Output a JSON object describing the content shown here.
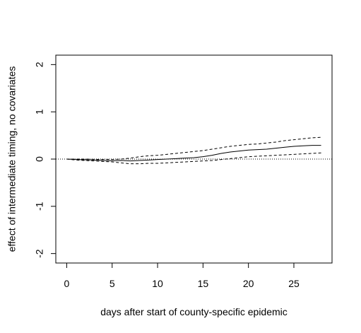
{
  "chart_data": {
    "type": "line",
    "title": "",
    "xlabel": "days after start of county-specific epidemic",
    "ylabel": "effect of intermediate timing, no covariates",
    "xlim": [
      -1.2,
      29.2
    ],
    "ylim": [
      -2.2,
      2.2
    ],
    "x_ticks": [
      0,
      5,
      10,
      15,
      20,
      25
    ],
    "y_ticks": [
      -2,
      -1,
      0,
      1,
      2
    ],
    "grid": false,
    "legend": "none",
    "reference_line": {
      "y": 0,
      "style": "dotted"
    },
    "x": [
      0,
      1,
      2,
      3,
      4,
      5,
      6,
      7,
      8,
      9,
      10,
      11,
      12,
      13,
      14,
      15,
      16,
      17,
      18,
      19,
      20,
      21,
      22,
      23,
      24,
      25,
      26,
      27,
      28
    ],
    "series": [
      {
        "style": "solid",
        "values": [
          0,
          -0.01,
          -0.015,
          -0.02,
          -0.03,
          -0.035,
          -0.03,
          -0.04,
          -0.03,
          -0.02,
          -0.01,
          0.0,
          0.01,
          0.02,
          0.03,
          0.05,
          0.08,
          0.12,
          0.15,
          0.17,
          0.19,
          0.2,
          0.21,
          0.23,
          0.25,
          0.27,
          0.28,
          0.29,
          0.29
        ]
      },
      {
        "style": "dashed",
        "values": [
          0,
          0.0,
          0.0,
          -0.005,
          -0.01,
          -0.01,
          0.0,
          0.02,
          0.05,
          0.07,
          0.08,
          0.1,
          0.12,
          0.14,
          0.16,
          0.18,
          0.21,
          0.24,
          0.27,
          0.29,
          0.31,
          0.32,
          0.34,
          0.36,
          0.39,
          0.41,
          0.43,
          0.45,
          0.46
        ]
      },
      {
        "style": "dashed",
        "values": [
          0,
          -0.02,
          -0.03,
          -0.04,
          -0.05,
          -0.06,
          -0.08,
          -0.1,
          -0.1,
          -0.09,
          -0.09,
          -0.08,
          -0.07,
          -0.06,
          -0.05,
          -0.04,
          -0.03,
          -0.01,
          0.01,
          0.03,
          0.05,
          0.06,
          0.07,
          0.08,
          0.09,
          0.1,
          0.11,
          0.12,
          0.13
        ]
      }
    ],
    "colors": {
      "line": "#000000",
      "background": "#ffffff"
    }
  }
}
